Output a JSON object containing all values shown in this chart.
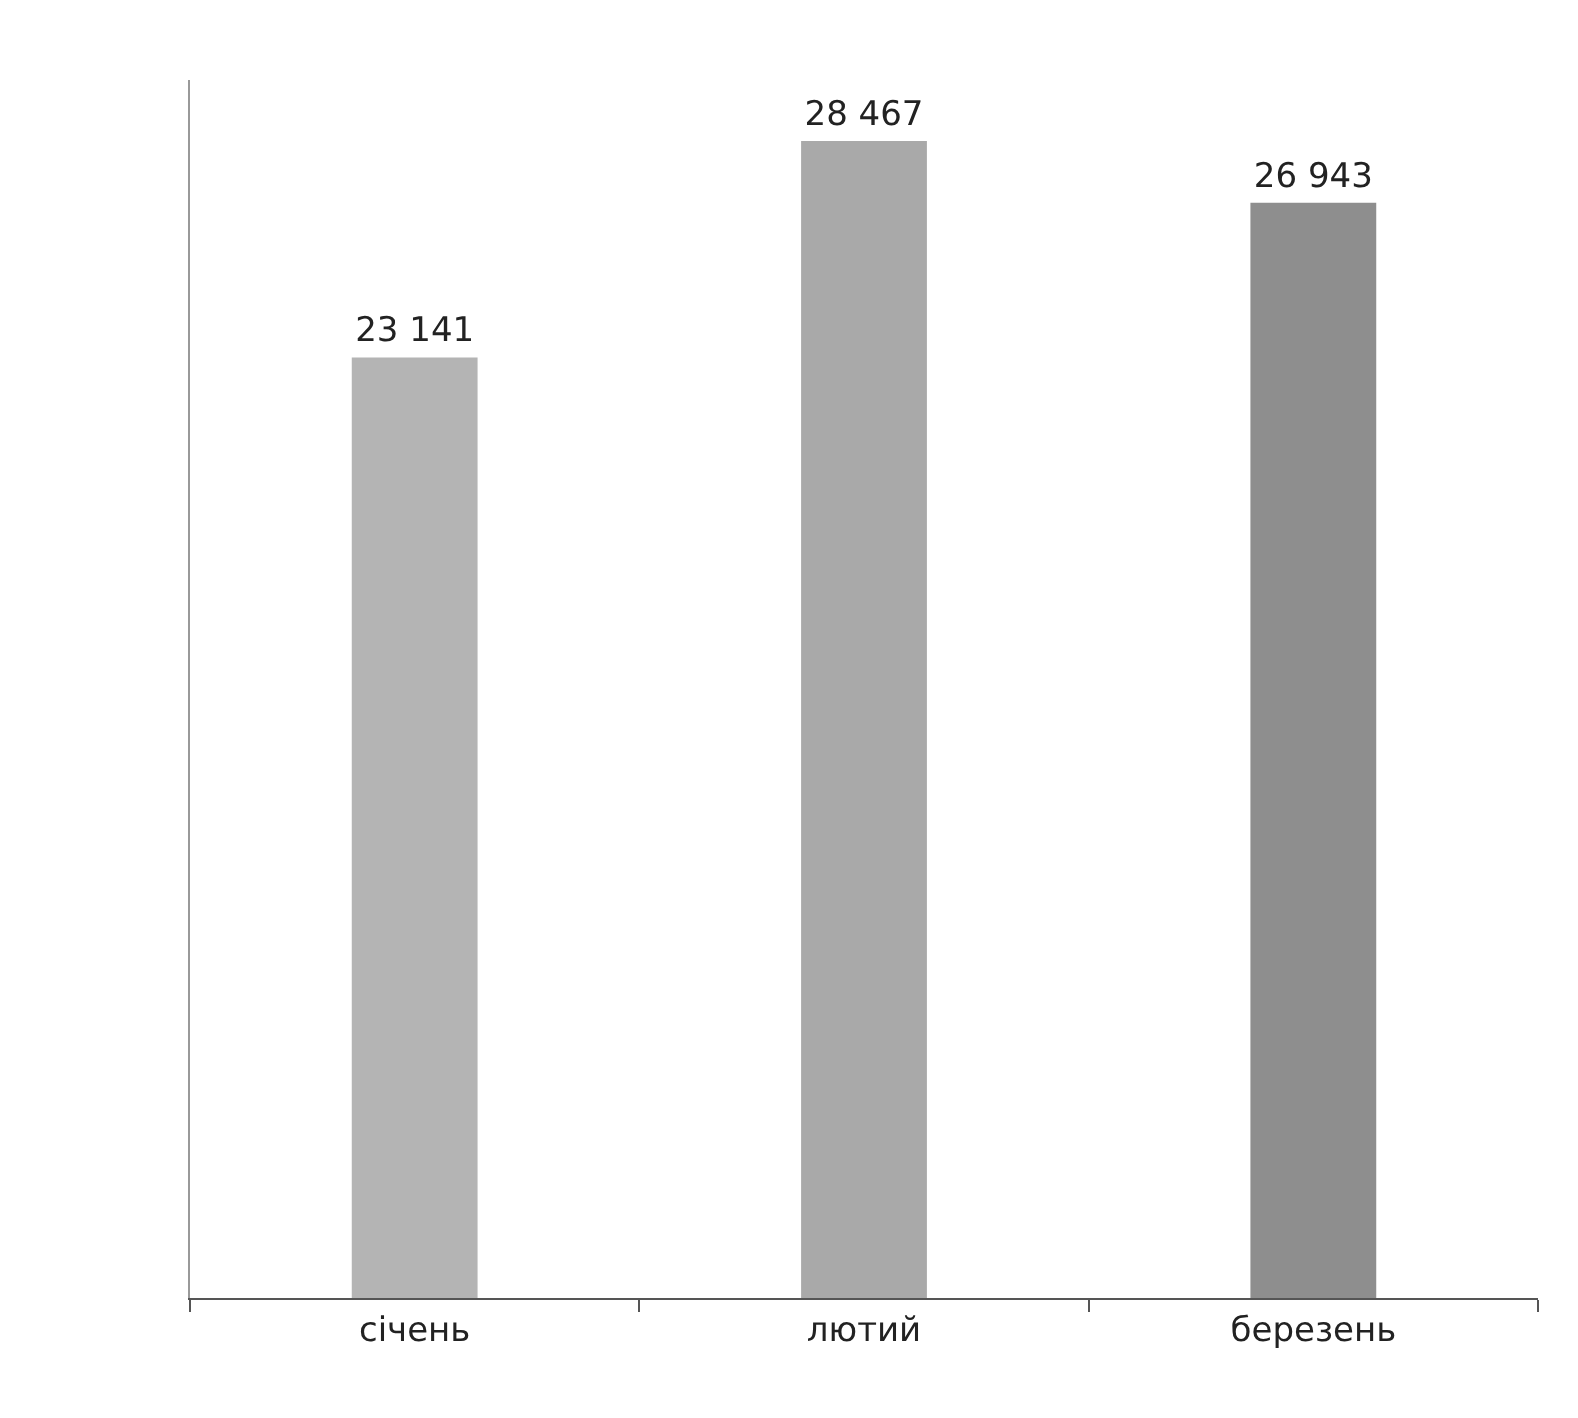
{
  "chart_data": {
    "type": "bar",
    "categories": [
      "січень",
      "лютий",
      "березень"
    ],
    "values": [
      23141,
      28467,
      26943
    ],
    "colors": [
      "#b4b4b4",
      "#a9a9a9",
      "#8e8e8e"
    ],
    "value_labels": [
      "23 141",
      "28 467",
      "26 943"
    ]
  }
}
